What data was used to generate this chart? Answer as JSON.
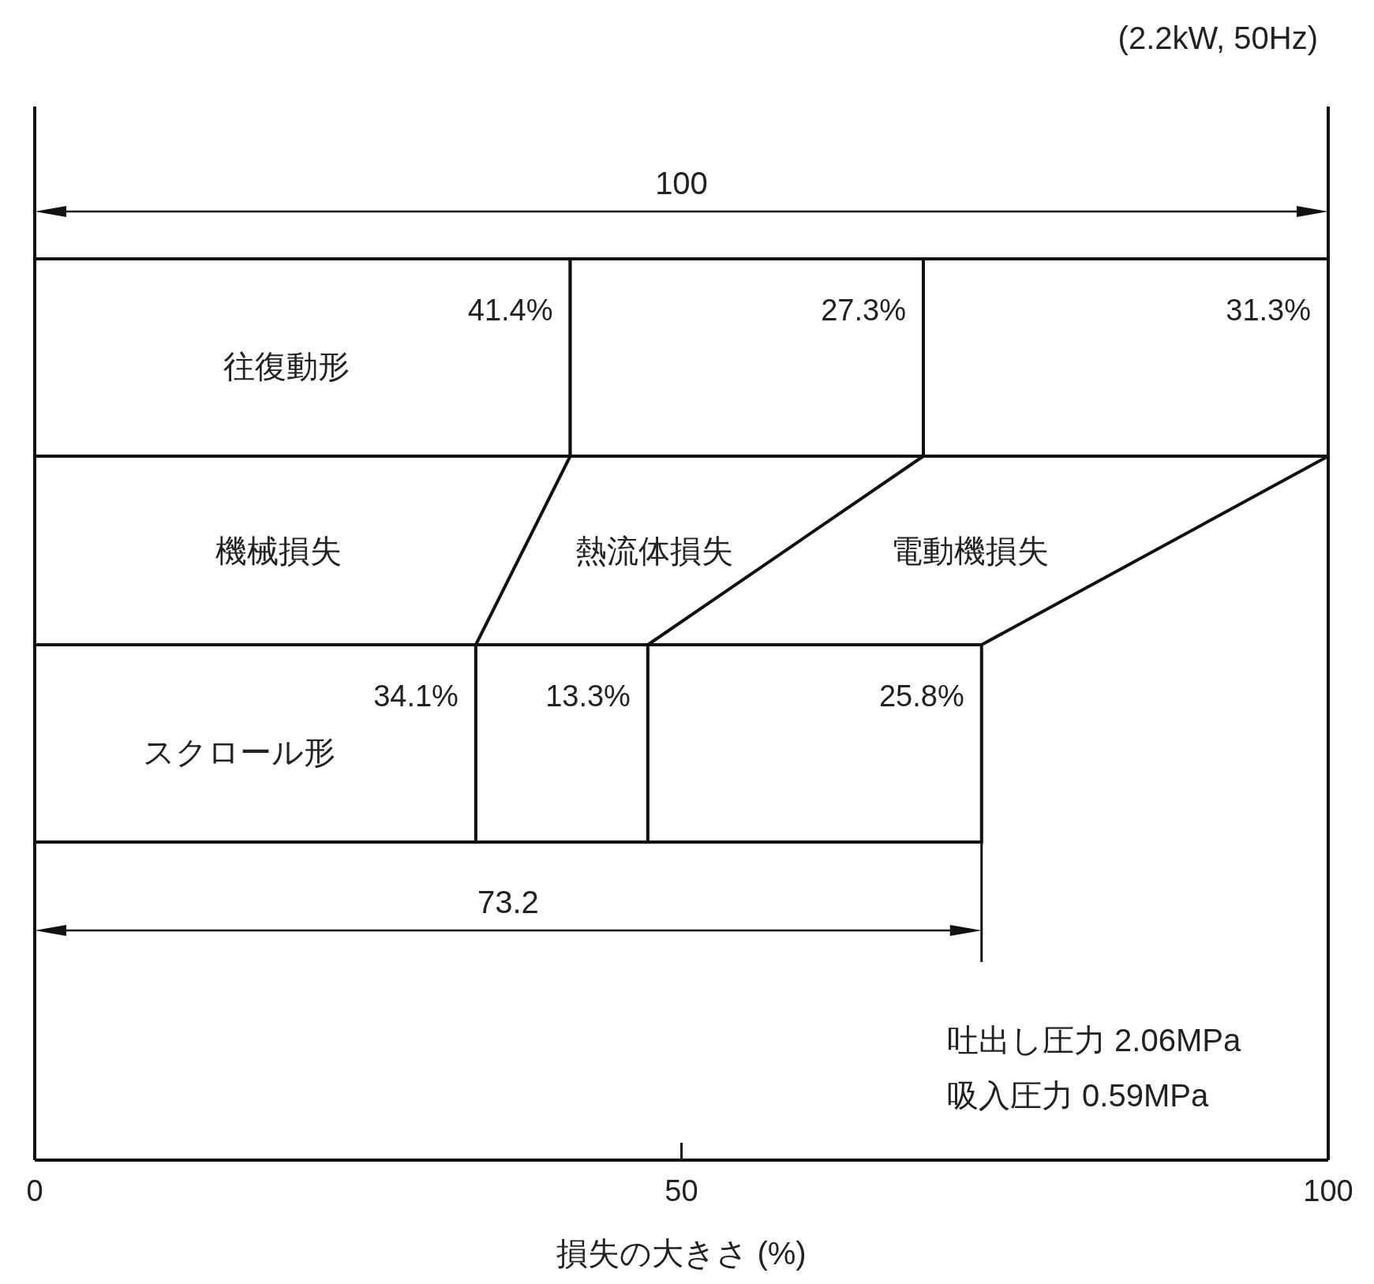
{
  "chart_data": {
    "type": "bar",
    "orientation": "horizontal",
    "stacked": true,
    "subtitle": "(2.2kW, 50Hz)",
    "xlabel": "損失の大きさ (%)",
    "categories": [
      "往復動形",
      "スクロール形"
    ],
    "series": [
      {
        "name": "機械損失",
        "color": "#ffffff",
        "values": [
          41.4,
          34.1
        ],
        "value_labels": [
          "41.4%",
          "34.1%"
        ]
      },
      {
        "name": "熱流体損失",
        "color": "#ffffff",
        "values": [
          27.3,
          13.3
        ],
        "value_labels": [
          "27.3%",
          "13.3%"
        ]
      },
      {
        "name": "電動機損失",
        "color": "#ffffff",
        "values": [
          31.3,
          25.8
        ],
        "value_labels": [
          "31.3%",
          "25.8%"
        ]
      }
    ],
    "totals": [
      "100",
      "73.2"
    ],
    "xlim": [
      0,
      100
    ],
    "xticks": [
      0,
      50,
      100
    ],
    "grid": false,
    "legend": false,
    "annotations": [
      "吐出し圧力 2.06MPa",
      "吸入圧力 0.59MPa"
    ]
  }
}
